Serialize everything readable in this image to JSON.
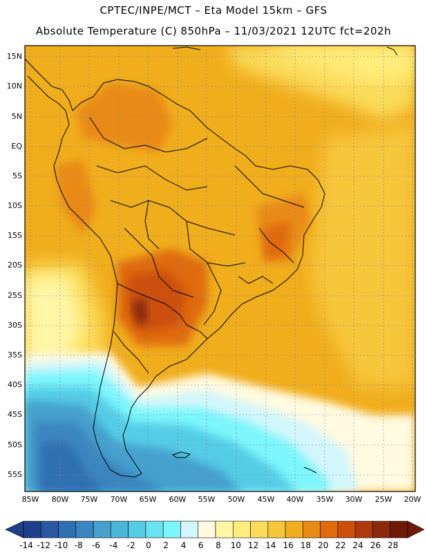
{
  "header": {
    "line1": "CPTEC/INPE/MCT –  Eta Model 15km – GFS",
    "line2": "Absolute Temperature (C) 850hPa – 11/03/2021 12UTC fct=202h"
  },
  "map": {
    "lat_labels": [
      "15N",
      "10N",
      "5N",
      "EQ",
      "5S",
      "10S",
      "15S",
      "20S",
      "25S",
      "30S",
      "35S",
      "40S",
      "45S",
      "50S",
      "55S"
    ],
    "lon_labels": [
      "85W",
      "80W",
      "75W",
      "70W",
      "65W",
      "60W",
      "55W",
      "50W",
      "45W",
      "40W",
      "35W",
      "30W",
      "25W",
      "20W"
    ]
  },
  "colorbar": {
    "labels": [
      "-14",
      "-12",
      "-10",
      "-8",
      "-6",
      "-4",
      "-2",
      "0",
      "2",
      "4",
      "6",
      "8",
      "10",
      "12",
      "14",
      "16",
      "18",
      "20",
      "22",
      "24",
      "26",
      "28"
    ],
    "colors": [
      "#1e3f8c",
      "#2a58a0",
      "#2f6fb2",
      "#3a86c0",
      "#45a0cc",
      "#4cb6d8",
      "#55cce6",
      "#68e3f0",
      "#7cf6fb",
      "#d2f6fb",
      "#fffae0",
      "#fff7a6",
      "#ffec7a",
      "#fbdc5a",
      "#f6c63a",
      "#f0ad1c",
      "#e98a14",
      "#df6b0e",
      "#cc500c",
      "#b0390b",
      "#8a2a0a",
      "#6d1a08"
    ]
  }
}
